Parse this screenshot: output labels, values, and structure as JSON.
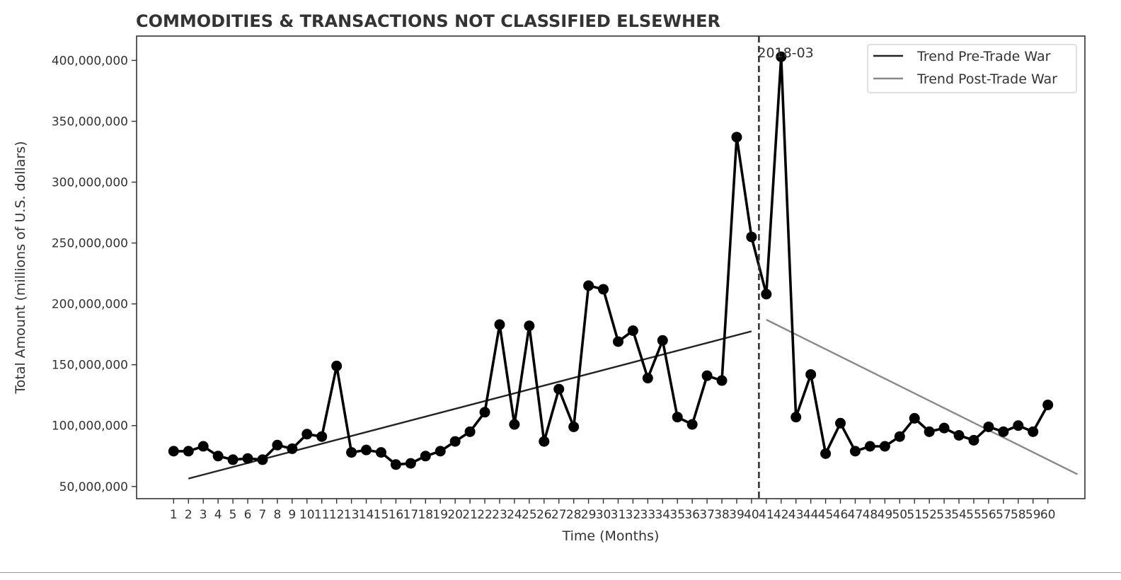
{
  "chart_data": {
    "type": "line",
    "title": "COMMODITIES & TRANSACTIONS NOT CLASSIFIED ELSEWHER",
    "xlabel": "Time (Months)",
    "ylabel": "Total Amount (millions of U.S. dollars)",
    "x": [
      1,
      2,
      3,
      4,
      5,
      6,
      7,
      8,
      9,
      10,
      11,
      12,
      13,
      14,
      15,
      16,
      17,
      18,
      19,
      20,
      21,
      22,
      23,
      24,
      25,
      26,
      27,
      28,
      29,
      30,
      31,
      32,
      33,
      34,
      35,
      36,
      37,
      38,
      39,
      40,
      41,
      42,
      43,
      44,
      45,
      46,
      47,
      48,
      49,
      50,
      51,
      52,
      53,
      54,
      55,
      56,
      57,
      58,
      59,
      60
    ],
    "xlim": [
      -1.5,
      62.5
    ],
    "ylim": [
      40000000,
      420000000
    ],
    "yticks": [
      50000000,
      100000000,
      150000000,
      200000000,
      250000000,
      300000000,
      350000000,
      400000000
    ],
    "ytick_labels": [
      "50,000,000",
      "100,000,000",
      "150,000,000",
      "200,000,000",
      "250,000,000",
      "300,000,000",
      "350,000,000",
      "400,000,000"
    ],
    "series": [
      {
        "color": "#000000",
        "values": [
          79000000,
          79000000,
          83000000,
          75000000,
          72000000,
          73000000,
          72000000,
          84000000,
          81000000,
          93000000,
          91000000,
          149000000,
          78000000,
          80000000,
          78000000,
          68000000,
          69000000,
          75000000,
          79000000,
          87000000,
          95000000,
          111000000,
          183000000,
          101000000,
          182000000,
          87000000,
          130000000,
          99000000,
          215000000,
          212000000,
          169000000,
          178000000,
          139000000,
          170000000,
          107000000,
          101000000,
          141000000,
          137000000,
          337000000,
          255000000,
          208000000,
          403000000,
          107000000,
          142000000,
          77000000,
          102000000,
          79000000,
          83000000,
          83000000,
          91000000,
          106000000,
          95000000,
          98000000,
          92000000,
          88000000,
          99000000,
          95000000,
          100000000,
          95000000,
          117000000
        ]
      },
      {
        "name": "Trend Pre-Trade War",
        "color": "#222222",
        "x": [
          2,
          40
        ],
        "values": [
          56500000,
          177500000
        ]
      },
      {
        "name": "Trend Post-Trade War",
        "color": "#888888",
        "x": [
          41,
          62
        ],
        "values": [
          187000000,
          60000000
        ]
      }
    ],
    "annotation": {
      "text": "2018-03",
      "x": 40.5
    },
    "legend_position": "top-right",
    "grid": false
  }
}
